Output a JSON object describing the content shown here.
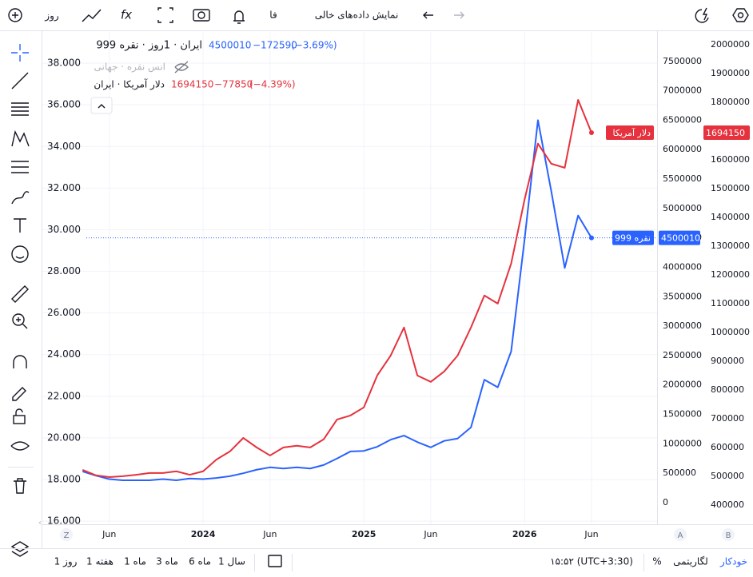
{
  "toolbar": {
    "interval": "روز",
    "language": "فا",
    "empty_data": "نمایش داده‌های خالی"
  },
  "chart_data": {
    "type": "line",
    "x": [
      "2023-04",
      "2023-05",
      "2023-06",
      "2023-07",
      "2023-08",
      "2023-09",
      "2023-10",
      "2023-11",
      "2023-12",
      "2024-01",
      "2024-02",
      "2024-03",
      "2024-04",
      "2024-05",
      "2024-06",
      "2024-07",
      "2024-08",
      "2024-09",
      "2024-10",
      "2024-11",
      "2024-12",
      "2025-01",
      "2025-02",
      "2025-03",
      "2025-04",
      "2025-05",
      "2025-06",
      "2025-07",
      "2025-08",
      "2025-09",
      "2025-10",
      "2025-11",
      "2025-12",
      "2026-01",
      "2026-02",
      "2026-03",
      "2026-04",
      "2026-05",
      "2026-06"
    ],
    "xlim": [
      "2023-01",
      "2026-10"
    ],
    "xticks": [
      {
        "value": "2023-06",
        "label": "Jun"
      },
      {
        "value": "2024-01",
        "label": "2024"
      },
      {
        "value": "2024-06",
        "label": "Jun"
      },
      {
        "value": "2025-01",
        "label": "2025"
      },
      {
        "value": "2025-06",
        "label": "Jun"
      },
      {
        "value": "2026-01",
        "label": "2026"
      },
      {
        "value": "2026-06",
        "label": "Jun"
      }
    ],
    "ylim": [
      15.85,
      39.5
    ],
    "yticks": [
      {
        "value": 16,
        "label": "16.000"
      },
      {
        "value": 18,
        "label": "18.000"
      },
      {
        "value": 20,
        "label": "20.000"
      },
      {
        "value": 22,
        "label": "22.000"
      },
      {
        "value": 24,
        "label": "24.000"
      },
      {
        "value": 26,
        "label": "26.000"
      },
      {
        "value": 28,
        "label": "28.000"
      },
      {
        "value": 30,
        "label": "30.000"
      },
      {
        "value": 32,
        "label": "32.000"
      },
      {
        "value": 34,
        "label": "34.000"
      },
      {
        "value": 36,
        "label": "36.000"
      },
      {
        "value": 38,
        "label": "38.000"
      }
    ],
    "y2lim": [
      -367000,
      8000000
    ],
    "y2ticks": [
      0,
      500000,
      1000000,
      1500000,
      2000000,
      2500000,
      3000000,
      3500000,
      4000000,
      4500000,
      5000000,
      5500000,
      6000000,
      6500000,
      7000000,
      7500000
    ],
    "y3lim": [
      333000,
      2044000
    ],
    "y3ticks": [
      400000,
      500000,
      600000,
      700000,
      800000,
      900000,
      1000000,
      1100000,
      1200000,
      1300000,
      1400000,
      1500000,
      1600000,
      1700000,
      1800000,
      1900000,
      2000000
    ],
    "grid": true,
    "hidden_series": {
      "title": "انس نقره · جهانی"
    },
    "series": [
      {
        "name": "نقره 999",
        "legend_title": "ایران · 1روز · نقره 999",
        "change": "−172590",
        "change_pct": "(−3.69%)",
        "color": "#2962ff",
        "axis": "y2",
        "values": [
          530000,
          460000,
          400000,
          380000,
          380000,
          380000,
          400000,
          380000,
          410000,
          400000,
          420000,
          450000,
          500000,
          560000,
          600000,
          580000,
          600000,
          580000,
          640000,
          750000,
          870000,
          880000,
          950000,
          1070000,
          1140000,
          1030000,
          940000,
          1050000,
          1090000,
          1280000,
          2090000,
          1960000,
          2570000,
          4470000,
          6500000,
          5290000,
          3990000,
          4880000,
          4500010
        ]
      },
      {
        "name": "دلار آمریکا",
        "legend_title": "دلار آمریکا · ایران",
        "change": "−77850",
        "change_pct": "(−4.39%)",
        "color": "#e5323e",
        "axis": "y3",
        "values": [
          522000,
          503000,
          497000,
          500000,
          505000,
          511000,
          511000,
          517000,
          505000,
          517000,
          558000,
          586000,
          633000,
          600000,
          572000,
          600000,
          606000,
          600000,
          628000,
          697000,
          711000,
          739000,
          850000,
          919000,
          1017000,
          850000,
          828000,
          864000,
          919000,
          1017000,
          1128000,
          1100000,
          1239000,
          1461000,
          1656000,
          1586000,
          1572000,
          1808000,
          1694150
        ]
      }
    ],
    "axis_buttons": [
      "Z",
      "A",
      "B"
    ]
  },
  "bottom_bar": {
    "ranges": [
      "1 روز",
      "1 هفته",
      "1 ماه",
      "3 ماه",
      "6 ماه",
      "1 سال"
    ],
    "time": "۱۵:۵۲ (UTC+3:30)",
    "percent": "%",
    "log": "لگاریتمی",
    "auto": "خودکار"
  }
}
